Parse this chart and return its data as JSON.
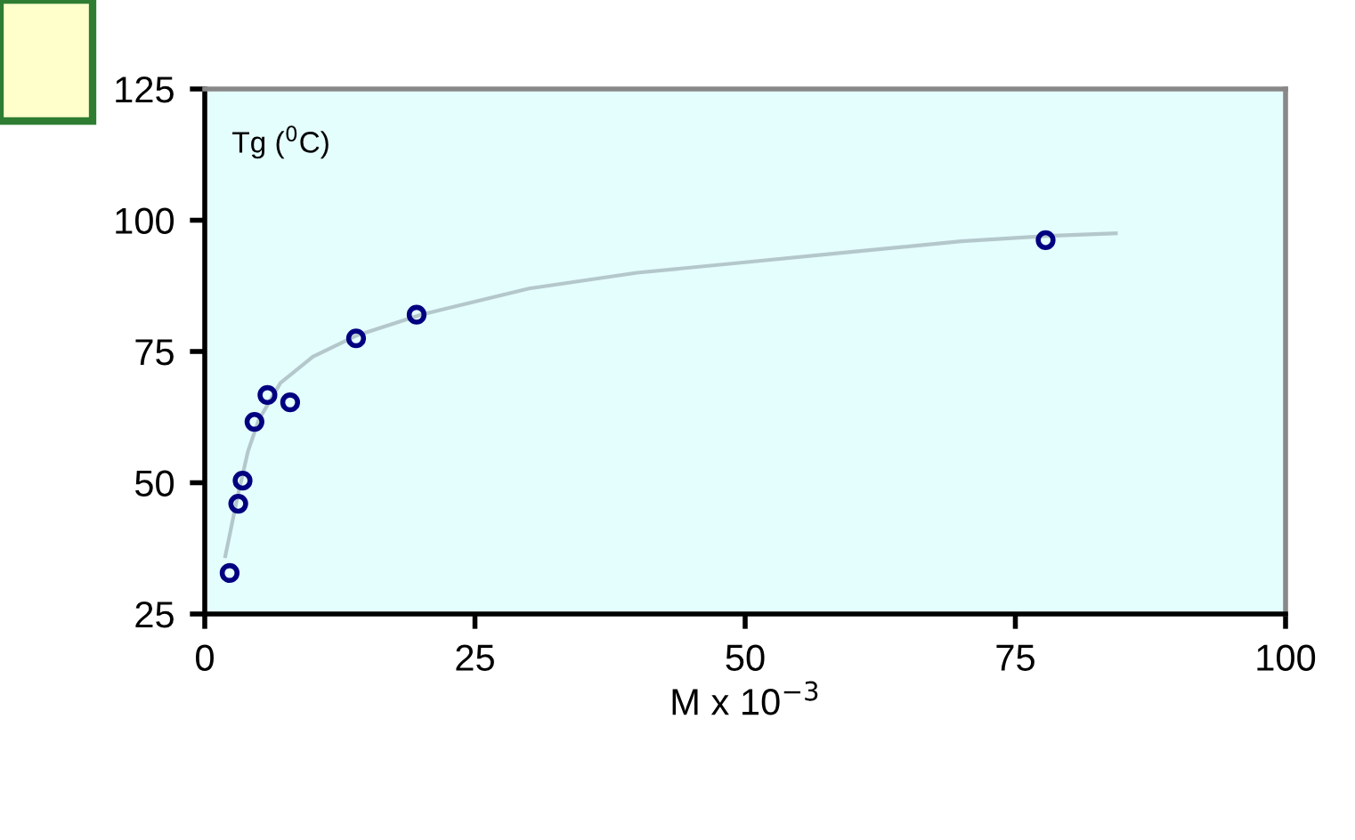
{
  "chart_data": {
    "type": "scatter",
    "ylabel": "Tg ($^{0}$C)",
    "xlabel": "M x 10$^{−3}$",
    "xlim": [
      0,
      100
    ],
    "xticks": [
      0,
      25,
      50,
      75,
      100
    ],
    "ylim": [
      25,
      125
    ],
    "yticks": [
      25,
      50,
      75,
      100,
      125
    ],
    "grid": false,
    "legend": false,
    "marker": "circle",
    "series": [
      {
        "color": "#000080",
        "x": [
          2.3,
          3.1,
          3.5,
          4.6,
          5.8,
          7.9,
          14.0,
          19.6,
          77.8
        ],
        "values": [
          32.8,
          46,
          50.4,
          61.6,
          66.7,
          65.3,
          77.5,
          82,
          96.2
        ]
      },
      {
        "type": "line",
        "color": "#b4c8cc",
        "marker": "none",
        "x": [
          1.9,
          3,
          4,
          5,
          7,
          10,
          14,
          20,
          30,
          40,
          50,
          60,
          70,
          78,
          84.3
        ],
        "values": [
          36,
          47,
          56,
          62,
          69,
          74,
          78,
          82,
          87,
          90,
          92,
          94,
          96,
          97,
          97.5
        ]
      }
    ]
  }
}
